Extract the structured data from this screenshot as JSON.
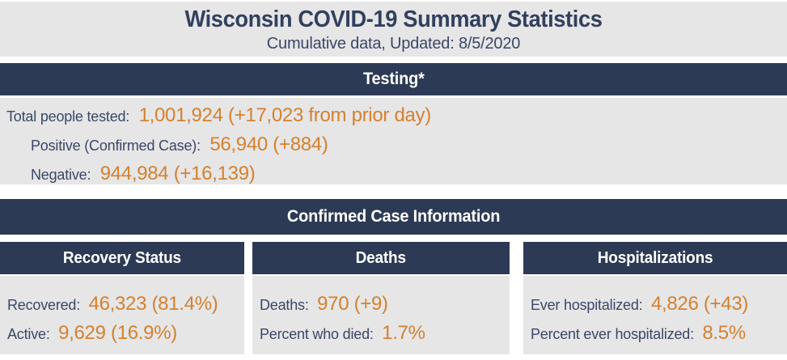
{
  "page": {
    "title": "Wisconsin COVID-19 Summary Statistics",
    "subtitle": "Cumulative data, Updated: 8/5/2020"
  },
  "colors": {
    "banner_navy": "#2d3a55",
    "label_navy": "#3a4768",
    "value_orange": "#d4812f",
    "section_gray": "#e6e6e6",
    "page_background": "#ffffff"
  },
  "testing": {
    "header": "Testing*",
    "rows": [
      {
        "label": "Total people tested:",
        "value": "1,001,924 (+17,023 from prior day)"
      },
      {
        "label": "Positive (Confirmed Case):",
        "value": "56,940 (+884)"
      },
      {
        "label": "Negative:",
        "value": "944,984 (+16,139)"
      }
    ]
  },
  "confirmed": {
    "header": "Confirmed Case Information",
    "columns": [
      {
        "header": "Recovery Status",
        "rows": [
          {
            "label": "Recovered:",
            "value": "46,323 (81.4%)"
          },
          {
            "label": "Active:",
            "value": "9,629 (16.9%)"
          }
        ]
      },
      {
        "header": "Deaths",
        "rows": [
          {
            "label": "Deaths:",
            "value": "970 (+9)"
          },
          {
            "label": "Percent who died:",
            "value": "1.7%"
          }
        ]
      },
      {
        "header": "Hospitalizations",
        "rows": [
          {
            "label": "Ever hospitalized:",
            "value": "4,826 (+43)"
          },
          {
            "label": "Percent ever hospitalized:",
            "value": "8.5%"
          }
        ]
      }
    ]
  }
}
